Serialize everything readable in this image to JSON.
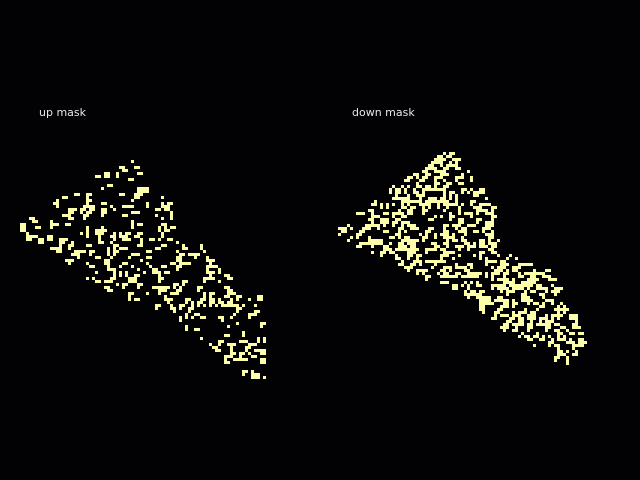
{
  "panels": [
    {
      "title": "up mask"
    },
    {
      "title": "down mask"
    }
  ],
  "colors": {
    "background": "#020103",
    "mask": "#fdfea9",
    "text": "#e8e8e8"
  }
}
